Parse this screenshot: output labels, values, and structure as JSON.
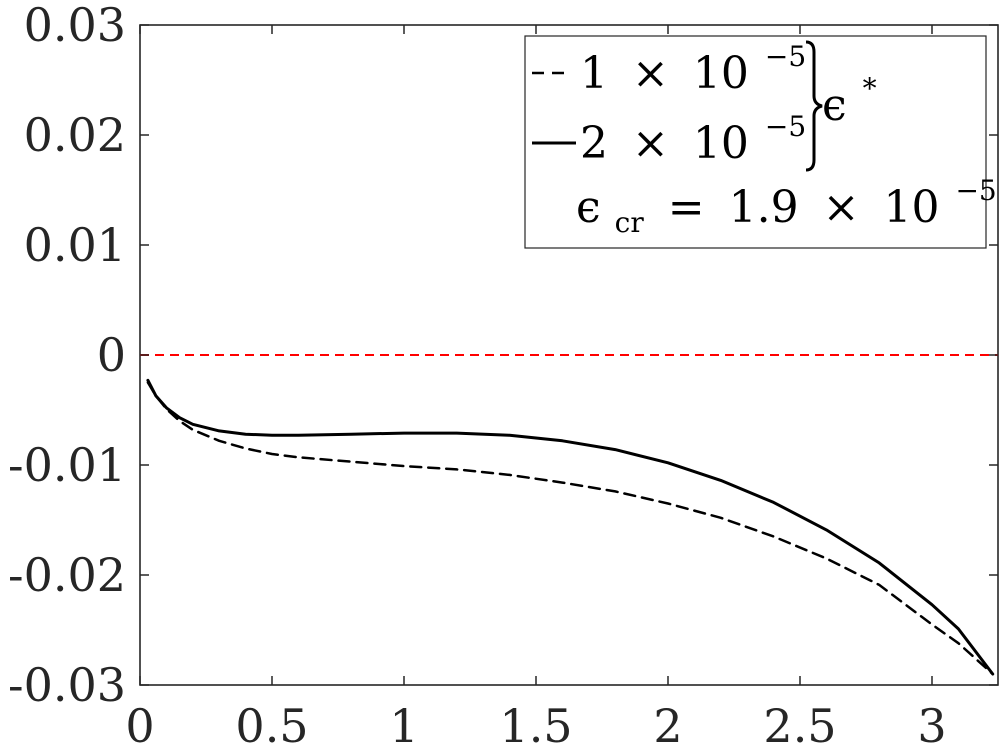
{
  "chart_data": {
    "type": "line",
    "xlim": [
      0,
      3.25
    ],
    "ylim": [
      -0.03,
      0.03
    ],
    "x_ticks": [
      0,
      0.5,
      1,
      1.5,
      2,
      2.5,
      3
    ],
    "x_tick_labels": [
      "0",
      "0.5",
      "1",
      "1.5",
      "2",
      "2.5",
      "3"
    ],
    "y_ticks": [
      0.03,
      0.02,
      0.01,
      0,
      -0.01,
      -0.02,
      -0.03
    ],
    "y_tick_labels": [
      "0.03",
      "0.02",
      "0.01",
      "0",
      "-0.01",
      "-0.02",
      "-0.03"
    ],
    "grid": false,
    "legend_position": "top-right",
    "series": [
      {
        "name": "1 × 10^-5",
        "style": "dashed",
        "color": "#000000",
        "x": [
          0.03,
          0.06,
          0.1,
          0.15,
          0.2,
          0.3,
          0.4,
          0.5,
          0.6,
          0.8,
          1.0,
          1.2,
          1.4,
          1.6,
          1.8,
          2.0,
          2.2,
          2.4,
          2.6,
          2.8,
          3.0,
          3.1,
          3.23
        ],
        "y": [
          -0.0025,
          -0.0037,
          -0.0049,
          -0.006,
          -0.0068,
          -0.0078,
          -0.0085,
          -0.009,
          -0.0093,
          -0.0097,
          -0.0101,
          -0.0104,
          -0.0109,
          -0.0116,
          -0.0124,
          -0.0135,
          -0.0148,
          -0.0165,
          -0.0185,
          -0.0209,
          -0.0245,
          -0.0262,
          -0.029
        ]
      },
      {
        "name": "2 × 10^-5",
        "style": "solid",
        "color": "#000000",
        "x": [
          0.03,
          0.06,
          0.1,
          0.15,
          0.2,
          0.3,
          0.4,
          0.5,
          0.6,
          0.8,
          1.0,
          1.1,
          1.2,
          1.4,
          1.6,
          1.8,
          2.0,
          2.2,
          2.4,
          2.6,
          2.8,
          3.0,
          3.1,
          3.23
        ],
        "y": [
          -0.0023,
          -0.0037,
          -0.0048,
          -0.0057,
          -0.0063,
          -0.0069,
          -0.0072,
          -0.0073,
          -0.0073,
          -0.0072,
          -0.0071,
          -0.0071,
          -0.0071,
          -0.0073,
          -0.0078,
          -0.0086,
          -0.0098,
          -0.0114,
          -0.0134,
          -0.0159,
          -0.0189,
          -0.0227,
          -0.0249,
          -0.029
        ]
      }
    ],
    "reference_line": {
      "y": 0,
      "style": "dashed",
      "color": "#ff0000"
    },
    "legend": {
      "entries": [
        {
          "mantissa": "1",
          "times": "×",
          "base": "10",
          "exponent": "−5",
          "line": "dashed"
        },
        {
          "mantissa": "2",
          "times": "×",
          "base": "10",
          "exponent": "−5",
          "line": "solid"
        }
      ],
      "group_label": "ϵ",
      "group_label_sup": "*",
      "annotation": {
        "symbol": "ϵ",
        "subscript": "cr",
        "equals": "=",
        "mantissa": "1.9",
        "times": "×",
        "base": "10",
        "exponent": "−5"
      }
    }
  }
}
